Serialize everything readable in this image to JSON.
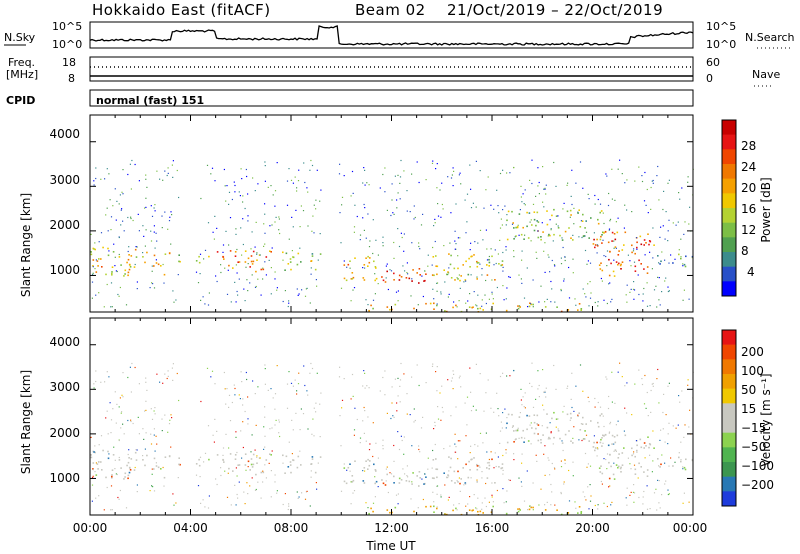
{
  "header": {
    "title": "Hokkaido East (fitACF)",
    "beam": "Beam 02",
    "date_range": "21/Oct/2019 – 22/Oct/2019"
  },
  "noise_panel": {
    "left_label": "N.Sky",
    "right_label": "N.Search",
    "ticks": [
      "10^5",
      "10^0"
    ]
  },
  "freq_panel": {
    "left_label_line1": "Freq.",
    "left_label_line2": "[MHz]",
    "left_ticks": [
      "18",
      "8"
    ],
    "right_ticks": [
      "60",
      "0"
    ],
    "right_label": "Nave"
  },
  "cpid_panel": {
    "label": "CPID",
    "text": "normal (fast) 151"
  },
  "power_panel": {
    "ylabel": "Slant Range [km]",
    "yticks": [
      "4000",
      "3000",
      "2000",
      "1000"
    ],
    "colorbar_label": "Power [dB]",
    "colorbar_ticks": [
      "28",
      "24",
      "20",
      "16",
      "12",
      "8",
      "4"
    ],
    "colors": [
      "#0000ff",
      "#2850c8",
      "#3c8c8c",
      "#50a050",
      "#7cbe46",
      "#b4d232",
      "#f0c800",
      "#f5a000",
      "#f07800",
      "#f04600",
      "#e61414",
      "#c80000"
    ]
  },
  "velocity_panel": {
    "ylabel": "Slant Range [km]",
    "yticks": [
      "4000",
      "3000",
      "2000",
      "1000"
    ],
    "colorbar_label": "Velocity [m s⁻¹]",
    "colorbar_ticks": [
      "200",
      "100",
      "50",
      "15",
      "−15",
      "−50",
      "−100",
      "−200"
    ],
    "colors": [
      "#1e3cdc",
      "#2878b4",
      "#3c9650",
      "#50b450",
      "#8cd250",
      "#c8c8c0",
      "#c8c8c0",
      "#f0c800",
      "#f0a000",
      "#f07800",
      "#f04600",
      "#e61414"
    ]
  },
  "xaxis": {
    "label": "Time UT",
    "ticks": [
      "00:00",
      "04:00",
      "08:00",
      "12:00",
      "16:00",
      "20:00",
      "00:00"
    ]
  },
  "chart_data": {
    "type": "heatmap",
    "title": "Hokkaido East (fitACF)",
    "x_range_hours": [
      0,
      24
    ],
    "y_range_km": [
      180,
      4600
    ],
    "xlabel": "Time UT",
    "ylabel": "Slant Range [km]",
    "panels": [
      {
        "name": "Power",
        "unit": "dB",
        "colorbar": [
          4,
          8,
          12,
          16,
          20,
          24,
          28
        ]
      },
      {
        "name": "Velocity",
        "unit": "m s^-1",
        "colorbar": [
          -200,
          -100,
          -50,
          -15,
          15,
          50,
          100,
          200
        ]
      }
    ],
    "blobs_hours_km_value": [
      [
        0.0,
        3.2,
        1000,
        1650,
        18
      ],
      [
        3.2,
        3.6,
        1200,
        1500,
        12
      ],
      [
        4.2,
        4.8,
        1250,
        1550,
        14
      ],
      [
        5.0,
        7.2,
        1100,
        1600,
        22
      ],
      [
        7.6,
        9.2,
        1100,
        1550,
        14
      ],
      [
        10.0,
        11.5,
        900,
        1500,
        20
      ],
      [
        11.5,
        13.5,
        800,
        1200,
        27
      ],
      [
        13.5,
        16.5,
        900,
        1500,
        16
      ],
      [
        16.5,
        20.5,
        1800,
        2500,
        14
      ],
      [
        20.0,
        22.5,
        1000,
        2000,
        24
      ],
      [
        22.5,
        24.0,
        1200,
        1500,
        10
      ],
      [
        11.0,
        20.0,
        200,
        400,
        18
      ]
    ]
  }
}
